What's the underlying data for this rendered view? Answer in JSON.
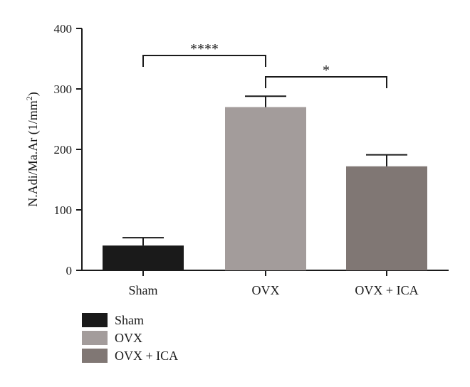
{
  "chart_data": {
    "type": "bar",
    "title": "",
    "xlabel": "",
    "ylabel": "N.Adi/Ma.Ar (1/mm",
    "ylabel_sup": "2",
    "ylabel_close": ")",
    "ylim": [
      0,
      400
    ],
    "yticks": [
      "0",
      "100",
      "200",
      "300",
      "400"
    ],
    "categories": [
      "Sham",
      "OVX",
      "OVX + ICA"
    ],
    "values": [
      41,
      270,
      172
    ],
    "errors": [
      13,
      18,
      19
    ],
    "colors": [
      "#1a1a1a",
      "#a39c9b",
      "#807774"
    ],
    "legend": [
      "Sham",
      "OVX",
      "OVX + ICA"
    ],
    "legend_position": "bottom-left",
    "grid": false,
    "significance": [
      {
        "from": 0,
        "to": 1,
        "label": "****"
      },
      {
        "from": 1,
        "to": 2,
        "label": "*"
      }
    ]
  }
}
